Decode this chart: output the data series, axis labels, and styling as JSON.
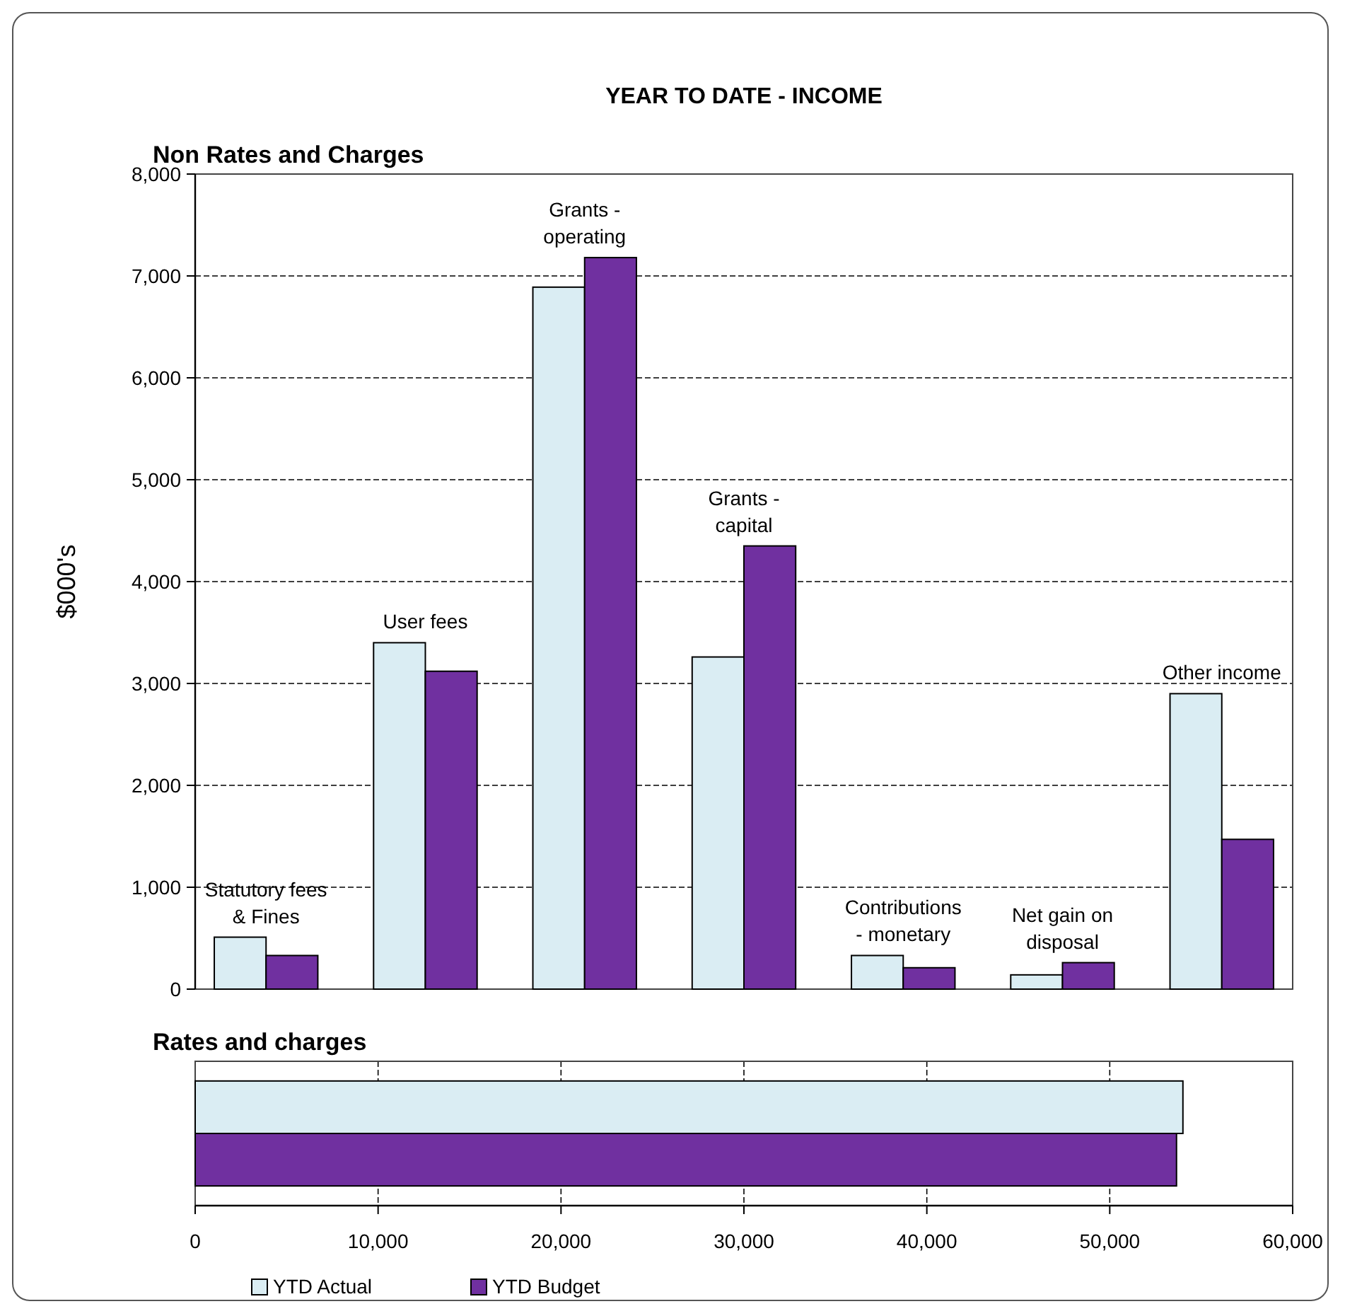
{
  "chart_data": [
    {
      "type": "bar",
      "title": "YEAR TO DATE - INCOME",
      "subtitle": "Non Rates and Charges",
      "ylabel": "$000's",
      "categories": [
        "Statutory fees & Fines",
        "User fees",
        "Grants - operating",
        "Grants - capital",
        "Contributions - monetary",
        "Net gain on disposal",
        "Other income"
      ],
      "series": [
        {
          "color": "#daedf3",
          "values": [
            510,
            3400,
            6890,
            3260,
            330,
            140,
            2900
          ]
        },
        {
          "color": "#7030a0",
          "values": [
            330,
            3120,
            7180,
            4350,
            210,
            260,
            1470
          ]
        }
      ],
      "ylim": [
        0,
        8000
      ],
      "yticks": [
        0,
        {
          "value": 1000,
          "label": "1,000"
        },
        {
          "value": 2000,
          "label": "2,000"
        },
        {
          "value": 3000,
          "label": "3,000"
        },
        {
          "value": 4000,
          "label": "4,000"
        },
        {
          "value": 5000,
          "label": "5,000"
        },
        {
          "value": 6000,
          "label": "6,000"
        },
        {
          "value": 7000,
          "label": "7,000"
        },
        {
          "value": 8000,
          "label": "8,000"
        }
      ],
      "grid": "y",
      "tick_labels": "y"
    },
    {
      "type": "bar",
      "orientation": "horizontal",
      "title": "Rates and charges",
      "categories": [
        null
      ],
      "series": [
        {
          "name": "YTD Actual",
          "color": "#daedf3",
          "values": [
            54000
          ]
        },
        {
          "name": "YTD Budget",
          "color": "#7030a0",
          "values": [
            53650
          ]
        }
      ],
      "xlim": [
        0,
        60000
      ],
      "xticks": [
        0,
        {
          "value": 10000,
          "label": "10,000"
        },
        {
          "value": 20000,
          "label": "20,000"
        },
        {
          "value": 30000,
          "label": "30,000"
        },
        {
          "value": 40000,
          "label": "40,000"
        },
        {
          "value": 50000,
          "label": "50,000"
        },
        {
          "value": 60000,
          "label": "60,000"
        }
      ],
      "grid": "x",
      "tick_labels": "x",
      "legend": "bottom"
    }
  ]
}
